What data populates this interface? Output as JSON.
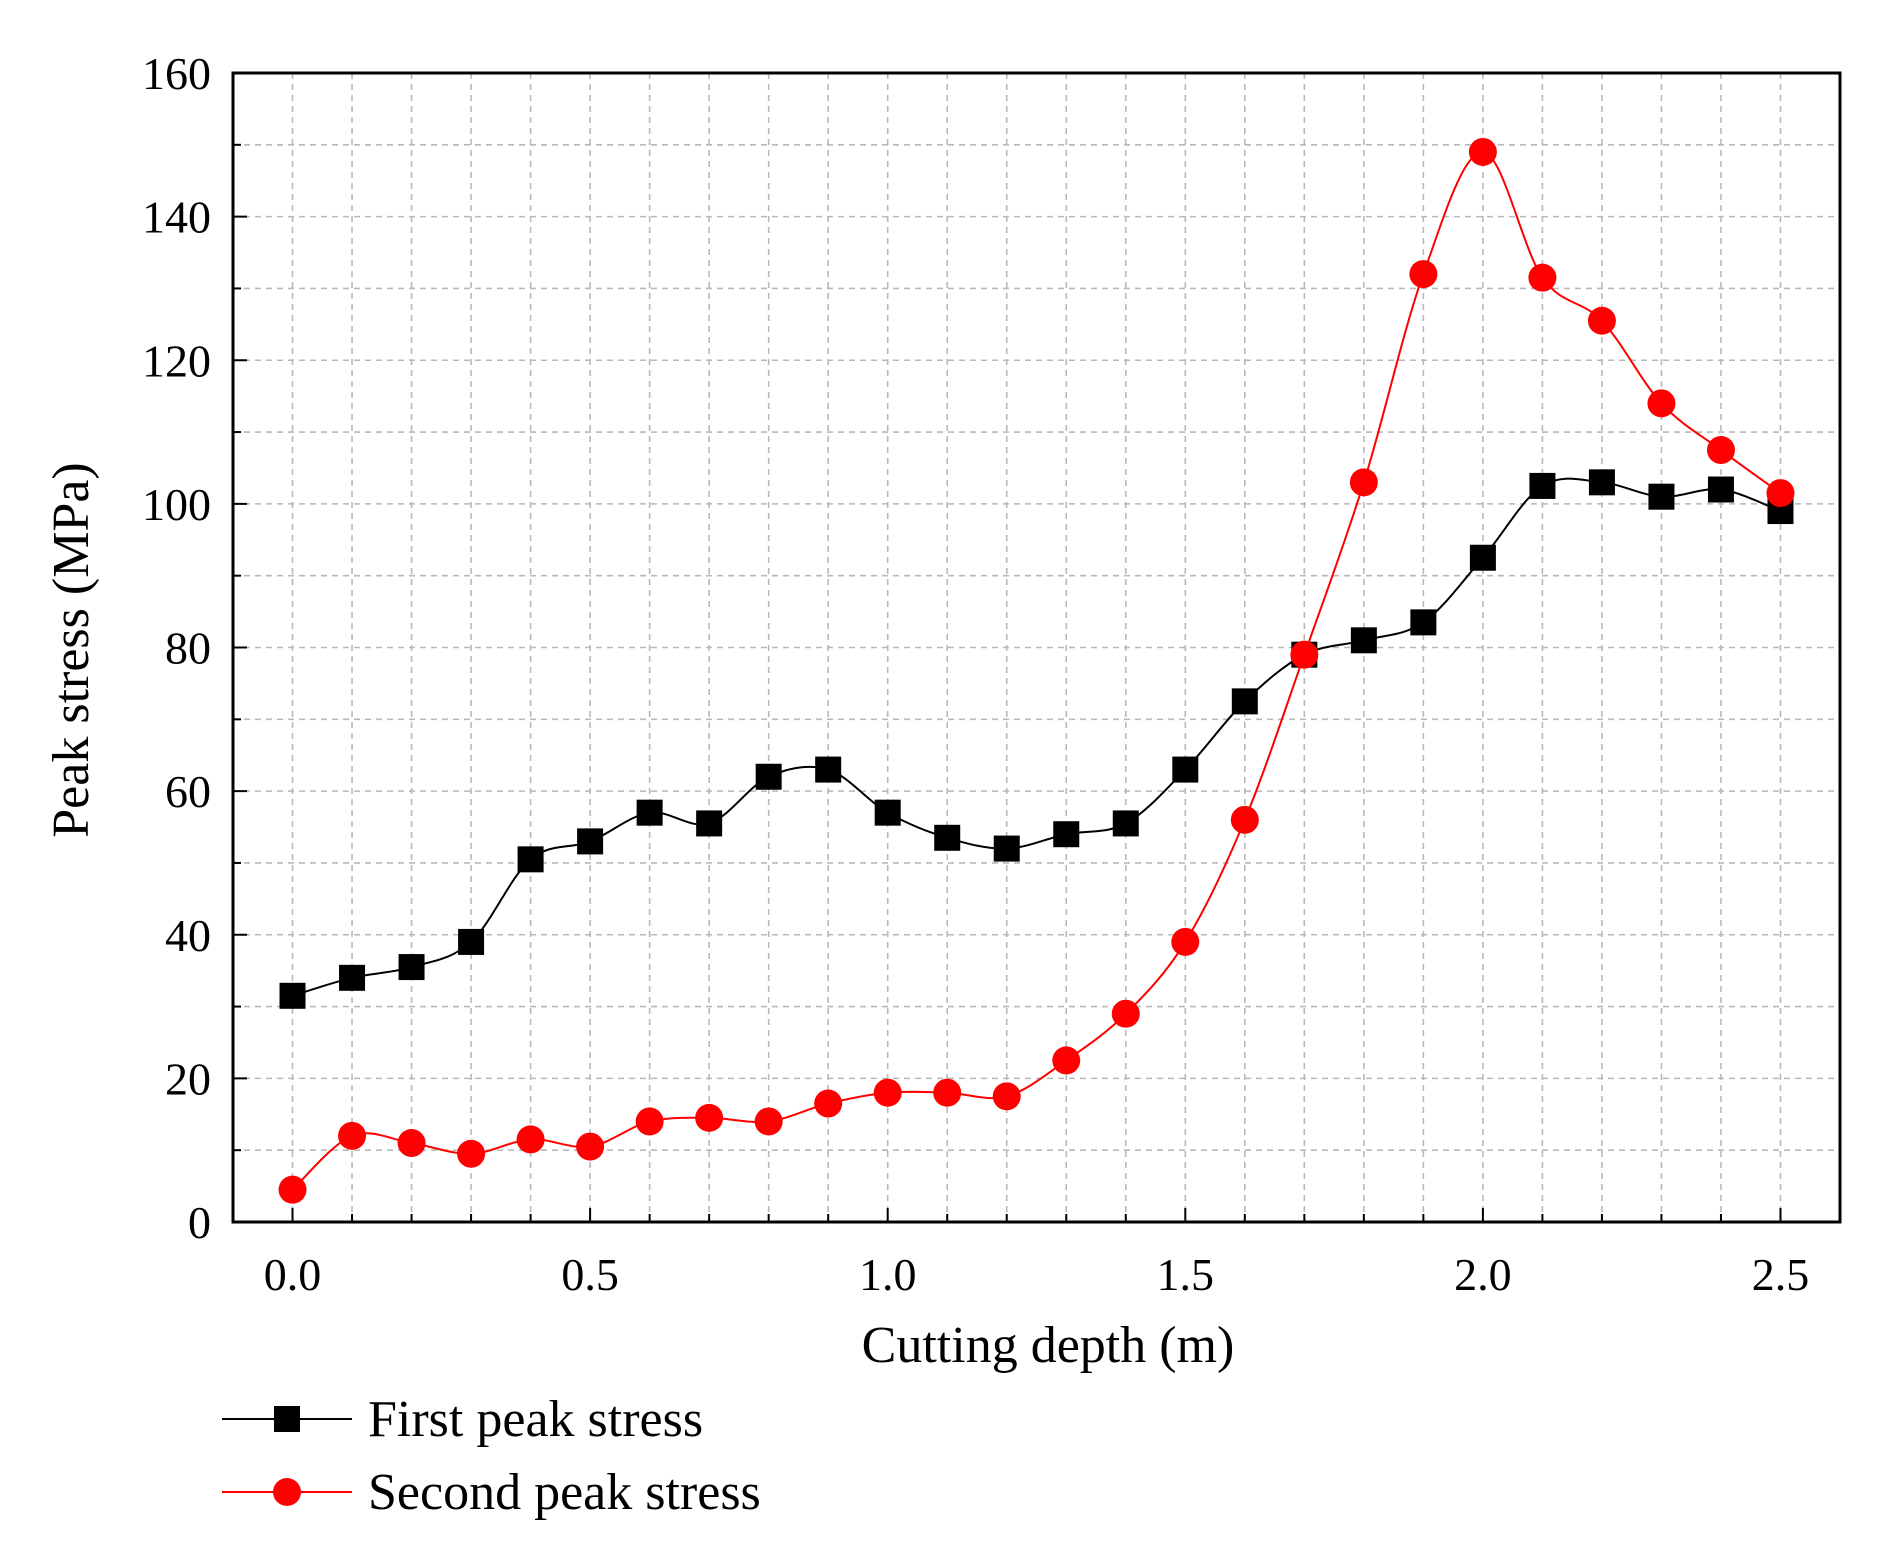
{
  "chart_data": {
    "type": "line",
    "title": "",
    "xlabel": "Cutting depth (m)",
    "ylabel": "Peak stress (MPa)",
    "xlim": [
      -0.1,
      2.6
    ],
    "ylim": [
      0,
      160
    ],
    "xticks": [
      0.0,
      0.5,
      1.0,
      1.5,
      2.0,
      2.5
    ],
    "xtick_labels": [
      "0.0",
      "0.5",
      "1.0",
      "1.5",
      "2.0",
      "2.5"
    ],
    "yticks": [
      0,
      20,
      40,
      60,
      80,
      100,
      120,
      140,
      160
    ],
    "ytick_labels": [
      "0",
      "20",
      "40",
      "60",
      "80",
      "100",
      "120",
      "140",
      "160"
    ],
    "grid": true,
    "legend_position": "bottom-left, below plot",
    "x": [
      0.0,
      0.1,
      0.2,
      0.3,
      0.4,
      0.5,
      0.6,
      0.7,
      0.8,
      0.9,
      1.0,
      1.1,
      1.2,
      1.3,
      1.4,
      1.5,
      1.6,
      1.7,
      1.8,
      1.9,
      2.0,
      2.1,
      2.2,
      2.3,
      2.4,
      2.5
    ],
    "series": [
      {
        "name": "First peak stress",
        "color": "#000000",
        "marker": "square",
        "values": [
          31.5,
          34.0,
          35.5,
          39.0,
          50.5,
          53.0,
          57.0,
          55.5,
          62.0,
          63.0,
          57.0,
          53.5,
          52.0,
          54.0,
          55.5,
          63.0,
          72.5,
          79.0,
          81.0,
          83.5,
          92.5,
          102.5,
          103.0,
          101.0,
          102.0,
          99.0
        ]
      },
      {
        "name": "Second peak stress",
        "color": "#ff0000",
        "marker": "circle",
        "values": [
          4.5,
          12.0,
          11.0,
          9.5,
          11.5,
          10.5,
          14.0,
          14.5,
          14.0,
          16.5,
          18.0,
          18.0,
          17.5,
          22.5,
          29.0,
          39.0,
          56.0,
          79.0,
          103.0,
          132.0,
          149.0,
          131.5,
          125.5,
          114.0,
          107.5,
          101.5
        ]
      }
    ]
  }
}
